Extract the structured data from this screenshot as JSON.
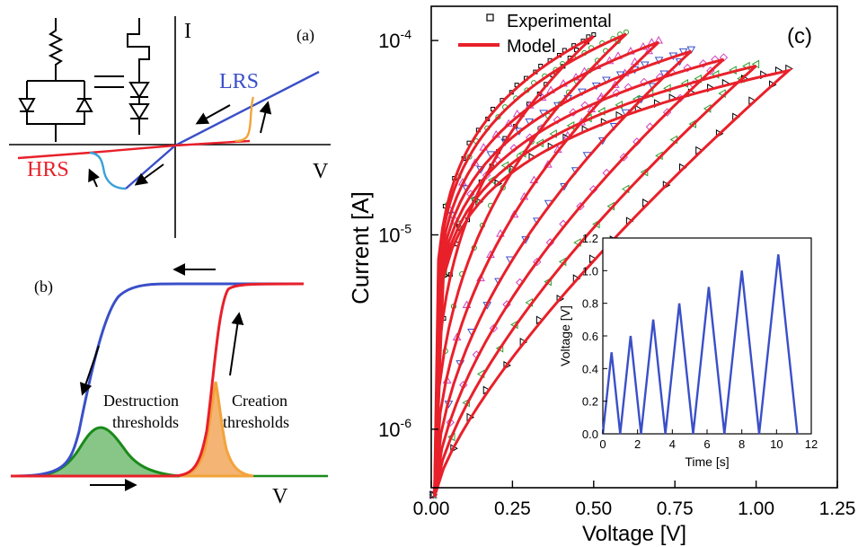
{
  "panel_a": {
    "label": "(a)",
    "axis_i": "I",
    "axis_v": "V",
    "lrs": "LRS",
    "hrs": "HRS",
    "colors": {
      "lrs": "#3a4fc8",
      "hrs": "#e8202a",
      "set": "#f2a33a",
      "reset": "#3aa0d8"
    }
  },
  "panel_b": {
    "label": "(b)",
    "axis_v": "V",
    "destruction": [
      "Destruction",
      "thresholds"
    ],
    "creation": [
      "Creation",
      "thresholds"
    ],
    "colors": {
      "destruction": "#3a4fc8",
      "creation": "#e8202a",
      "destruction_fill": "#5fb35f",
      "creation_fill": "#f2a75a"
    }
  },
  "panel_c": {
    "label": "(c)",
    "legend": {
      "experimental": "Experimental",
      "model": "Model"
    }
  },
  "chart_data": [
    {
      "type": "line",
      "xlabel": "Voltage [V]",
      "ylabel": "Current [A]",
      "xlim": [
        0,
        1.25
      ],
      "ylim": [
        5e-07,
        0.00015
      ],
      "yscale": "log",
      "xticks": [
        "0.00",
        "0.25",
        "0.50",
        "0.75",
        "1.00",
        "1.25"
      ],
      "yticks": [
        "10^-6",
        "10^-5",
        "10^-4"
      ],
      "series": [
        {
          "name": "Model",
          "color": "#e8202a",
          "cycles": [
            {
              "vmax": 0.5,
              "imax": 0.000105
            },
            {
              "vmax": 0.6,
              "imax": 0.000108
            },
            {
              "vmax": 0.7,
              "imax": 9.8e-05
            },
            {
              "vmax": 0.8,
              "imax": 8.8e-05
            },
            {
              "vmax": 0.9,
              "imax": 8e-05
            },
            {
              "vmax": 1.0,
              "imax": 7.4e-05
            },
            {
              "vmax": 1.1,
              "imax": 7e-05
            }
          ]
        },
        {
          "name": "Experimental",
          "markers": [
            "square",
            "circle",
            "triangle-up",
            "triangle-down",
            "diamond",
            "triangle-left",
            "triangle-right"
          ]
        }
      ]
    },
    {
      "type": "line",
      "xlabel": "Time [s]",
      "ylabel": "Voltage [V]",
      "xlim": [
        0,
        12
      ],
      "ylim": [
        0,
        1.2
      ],
      "xticks": [
        "0",
        "2",
        "4",
        "6",
        "8",
        "10",
        "12"
      ],
      "yticks": [
        "0.0",
        "0.2",
        "0.4",
        "0.6",
        "0.8",
        "1.0",
        "1.2"
      ],
      "series": [
        {
          "color": "#3a4fc8",
          "x": [
            0,
            0.5,
            1.0,
            1.6,
            2.2,
            2.9,
            3.6,
            4.4,
            5.2,
            6.1,
            7.0,
            8.0,
            9.0,
            10.1,
            11.2
          ],
          "y": [
            0,
            0.5,
            0,
            0.6,
            0,
            0.7,
            0,
            0.8,
            0,
            0.9,
            0,
            1.0,
            0,
            1.1,
            0
          ]
        }
      ]
    }
  ]
}
